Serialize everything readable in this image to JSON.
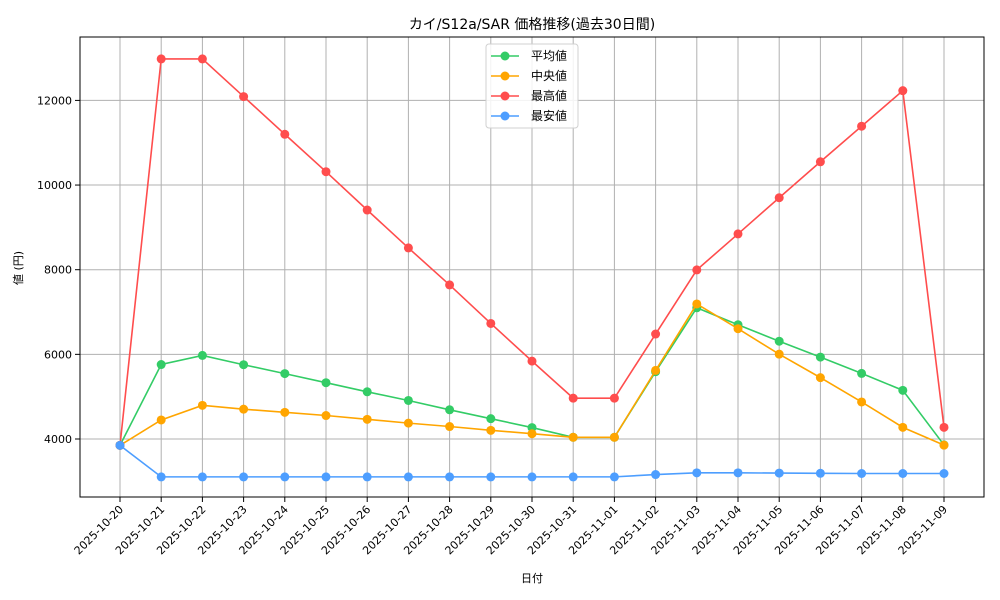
{
  "chart_data": {
    "type": "line",
    "title": "カイ/S12a/SAR 価格推移(過去30日間)",
    "xlabel": "日付",
    "ylabel": "値 (円)",
    "grid": true,
    "legend_position": "upper center",
    "ylim": [
      2600,
      13500
    ],
    "yticks": [
      4000,
      6000,
      8000,
      10000,
      12000
    ],
    "categories": [
      "2025-10-20",
      "2025-10-21",
      "2025-10-22",
      "2025-10-23",
      "2025-10-24",
      "2025-10-25",
      "2025-10-26",
      "2025-10-27",
      "2025-10-28",
      "2025-10-29",
      "2025-10-30",
      "2025-10-31",
      "2025-11-01",
      "2025-11-02",
      "2025-11-03",
      "2025-11-04",
      "2025-11-05",
      "2025-11-06",
      "2025-11-07",
      "2025-11-08",
      "2025-11-09"
    ],
    "series": [
      {
        "name": "平均値",
        "color": "#33cc66",
        "values": [
          3850,
          5760,
          5975,
          5755,
          5545,
          5330,
          5115,
          4910,
          4690,
          4480,
          4270,
          4040,
          4040,
          5590,
          7100,
          6700,
          6310,
          5935,
          5550,
          5150,
          3860
        ]
      },
      {
        "name": "中央値",
        "color": "#ffa500",
        "values": [
          3850,
          4450,
          4795,
          4705,
          4630,
          4555,
          4465,
          4375,
          4295,
          4205,
          4125,
          4040,
          4040,
          5620,
          7190,
          6605,
          6005,
          5450,
          4875,
          4275,
          3855
        ]
      },
      {
        "name": "最高値",
        "color": "#ff4d4d",
        "values": [
          3850,
          12980,
          12980,
          12090,
          11200,
          10315,
          9410,
          8515,
          7640,
          6730,
          5840,
          4965,
          4965,
          6480,
          7995,
          8845,
          9700,
          10550,
          11390,
          12230,
          4275
        ]
      },
      {
        "name": "最安値",
        "color": "#4d9eff",
        "values": [
          3850,
          3105,
          3105,
          3105,
          3105,
          3105,
          3105,
          3105,
          3105,
          3105,
          3105,
          3105,
          3105,
          3160,
          3200,
          3200,
          3195,
          3190,
          3185,
          3185,
          3185
        ]
      }
    ]
  }
}
